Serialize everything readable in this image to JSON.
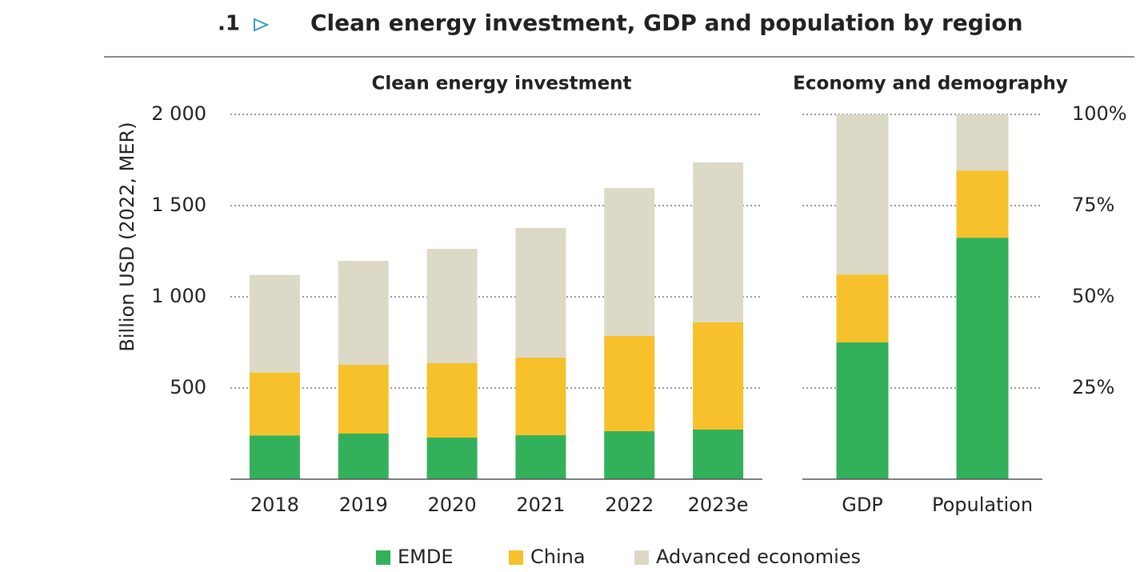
{
  "header": {
    "figure_number": ".1",
    "title": "Clean energy investment, GDP and population by region"
  },
  "chart_data": [
    {
      "type": "stacked_bar",
      "title": "Clean energy investment",
      "y_label": "Billion USD (2022, MER)",
      "categories": [
        "2018",
        "2019",
        "2020",
        "2021",
        "2022",
        "2023e"
      ],
      "series": [
        {
          "name": "EMDE",
          "color": "#33b05a",
          "values": [
            240,
            250,
            228,
            241,
            263,
            272
          ]
        },
        {
          "name": "China",
          "color": "#f6c12a",
          "values": [
            345,
            377,
            408,
            426,
            522,
            588
          ]
        },
        {
          "name": "Advanced economies",
          "color": "#dcdac6",
          "values": [
            535,
            570,
            627,
            710,
            811,
            877
          ]
        }
      ],
      "ylim": [
        0,
        2000
      ],
      "yticks": [
        500,
        {
          "value": 1000,
          "label": "1 000"
        },
        {
          "value": 1500,
          "label": "1 500"
        },
        {
          "value": 2000,
          "label": "2 000"
        }
      ],
      "grid": true
    },
    {
      "type": "stacked_bar",
      "title": "Economy and demography",
      "categories": [
        "GDP",
        "Population"
      ],
      "series": [
        {
          "name": "EMDE",
          "color": "#33b05a",
          "values": [
            37.5,
            66.2
          ]
        },
        {
          "name": "China",
          "color": "#f6c12a",
          "values": [
            18.6,
            18.4
          ]
        },
        {
          "name": "Advanced economies",
          "color": "#dcdac6",
          "values": [
            43.9,
            15.4
          ]
        }
      ],
      "ylim": [
        0,
        100
      ],
      "yticks": [
        {
          "value": 25,
          "label": "25%"
        },
        {
          "value": 50,
          "label": "50%"
        },
        {
          "value": 75,
          "label": "75%"
        },
        {
          "value": 100,
          "label": "100%"
        }
      ],
      "grid": true
    }
  ],
  "legend": {
    "position": "bottom"
  }
}
